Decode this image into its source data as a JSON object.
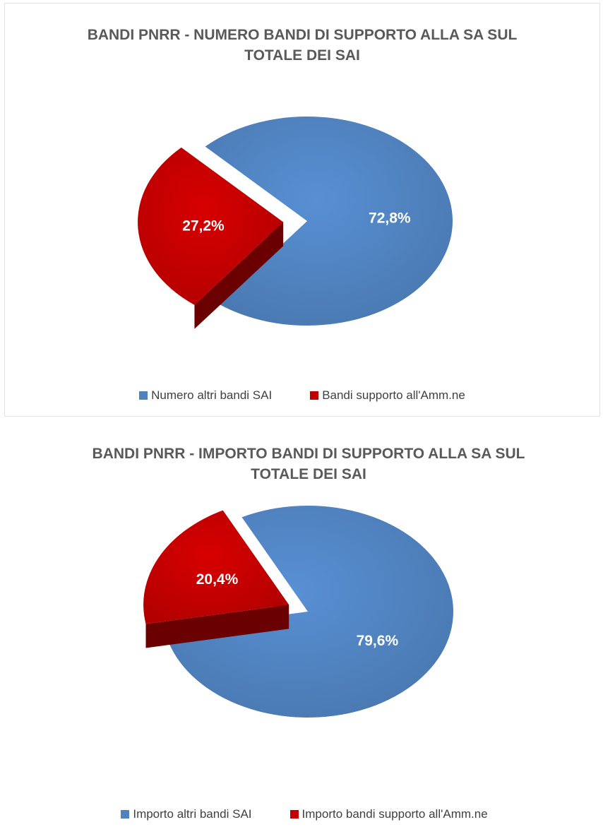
{
  "colors": {
    "blue": "#4f81bd",
    "red": "#c00000",
    "title": "#595959"
  },
  "chart_data": [
    {
      "type": "pie",
      "title_line1": "BANDI PNRR - NUMERO BANDI DI SUPPORTO ALLA SA SUL",
      "title_line2": "TOTALE DEI SAI",
      "slices": [
        {
          "name": "Numero altri bandi SAI",
          "value": 72.8,
          "label": "72,8%",
          "color": "#4f81bd"
        },
        {
          "name": "Bandi supporto all'Amm.ne",
          "value": 27.2,
          "label": "27,2%",
          "color": "#c00000"
        }
      ],
      "legend_position": "bottom"
    },
    {
      "type": "pie",
      "title_line1": "BANDI PNRR - IMPORTO BANDI DI SUPPORTO ALLA SA SUL",
      "title_line2": "TOTALE DEI SAI",
      "slices": [
        {
          "name": "Importo altri bandi SAI",
          "value": 79.6,
          "label": "79,6%",
          "color": "#4f81bd"
        },
        {
          "name": "Importo bandi supporto all'Amm.ne",
          "value": 20.4,
          "label": "20,4%",
          "color": "#c00000"
        }
      ],
      "legend_position": "bottom"
    }
  ]
}
